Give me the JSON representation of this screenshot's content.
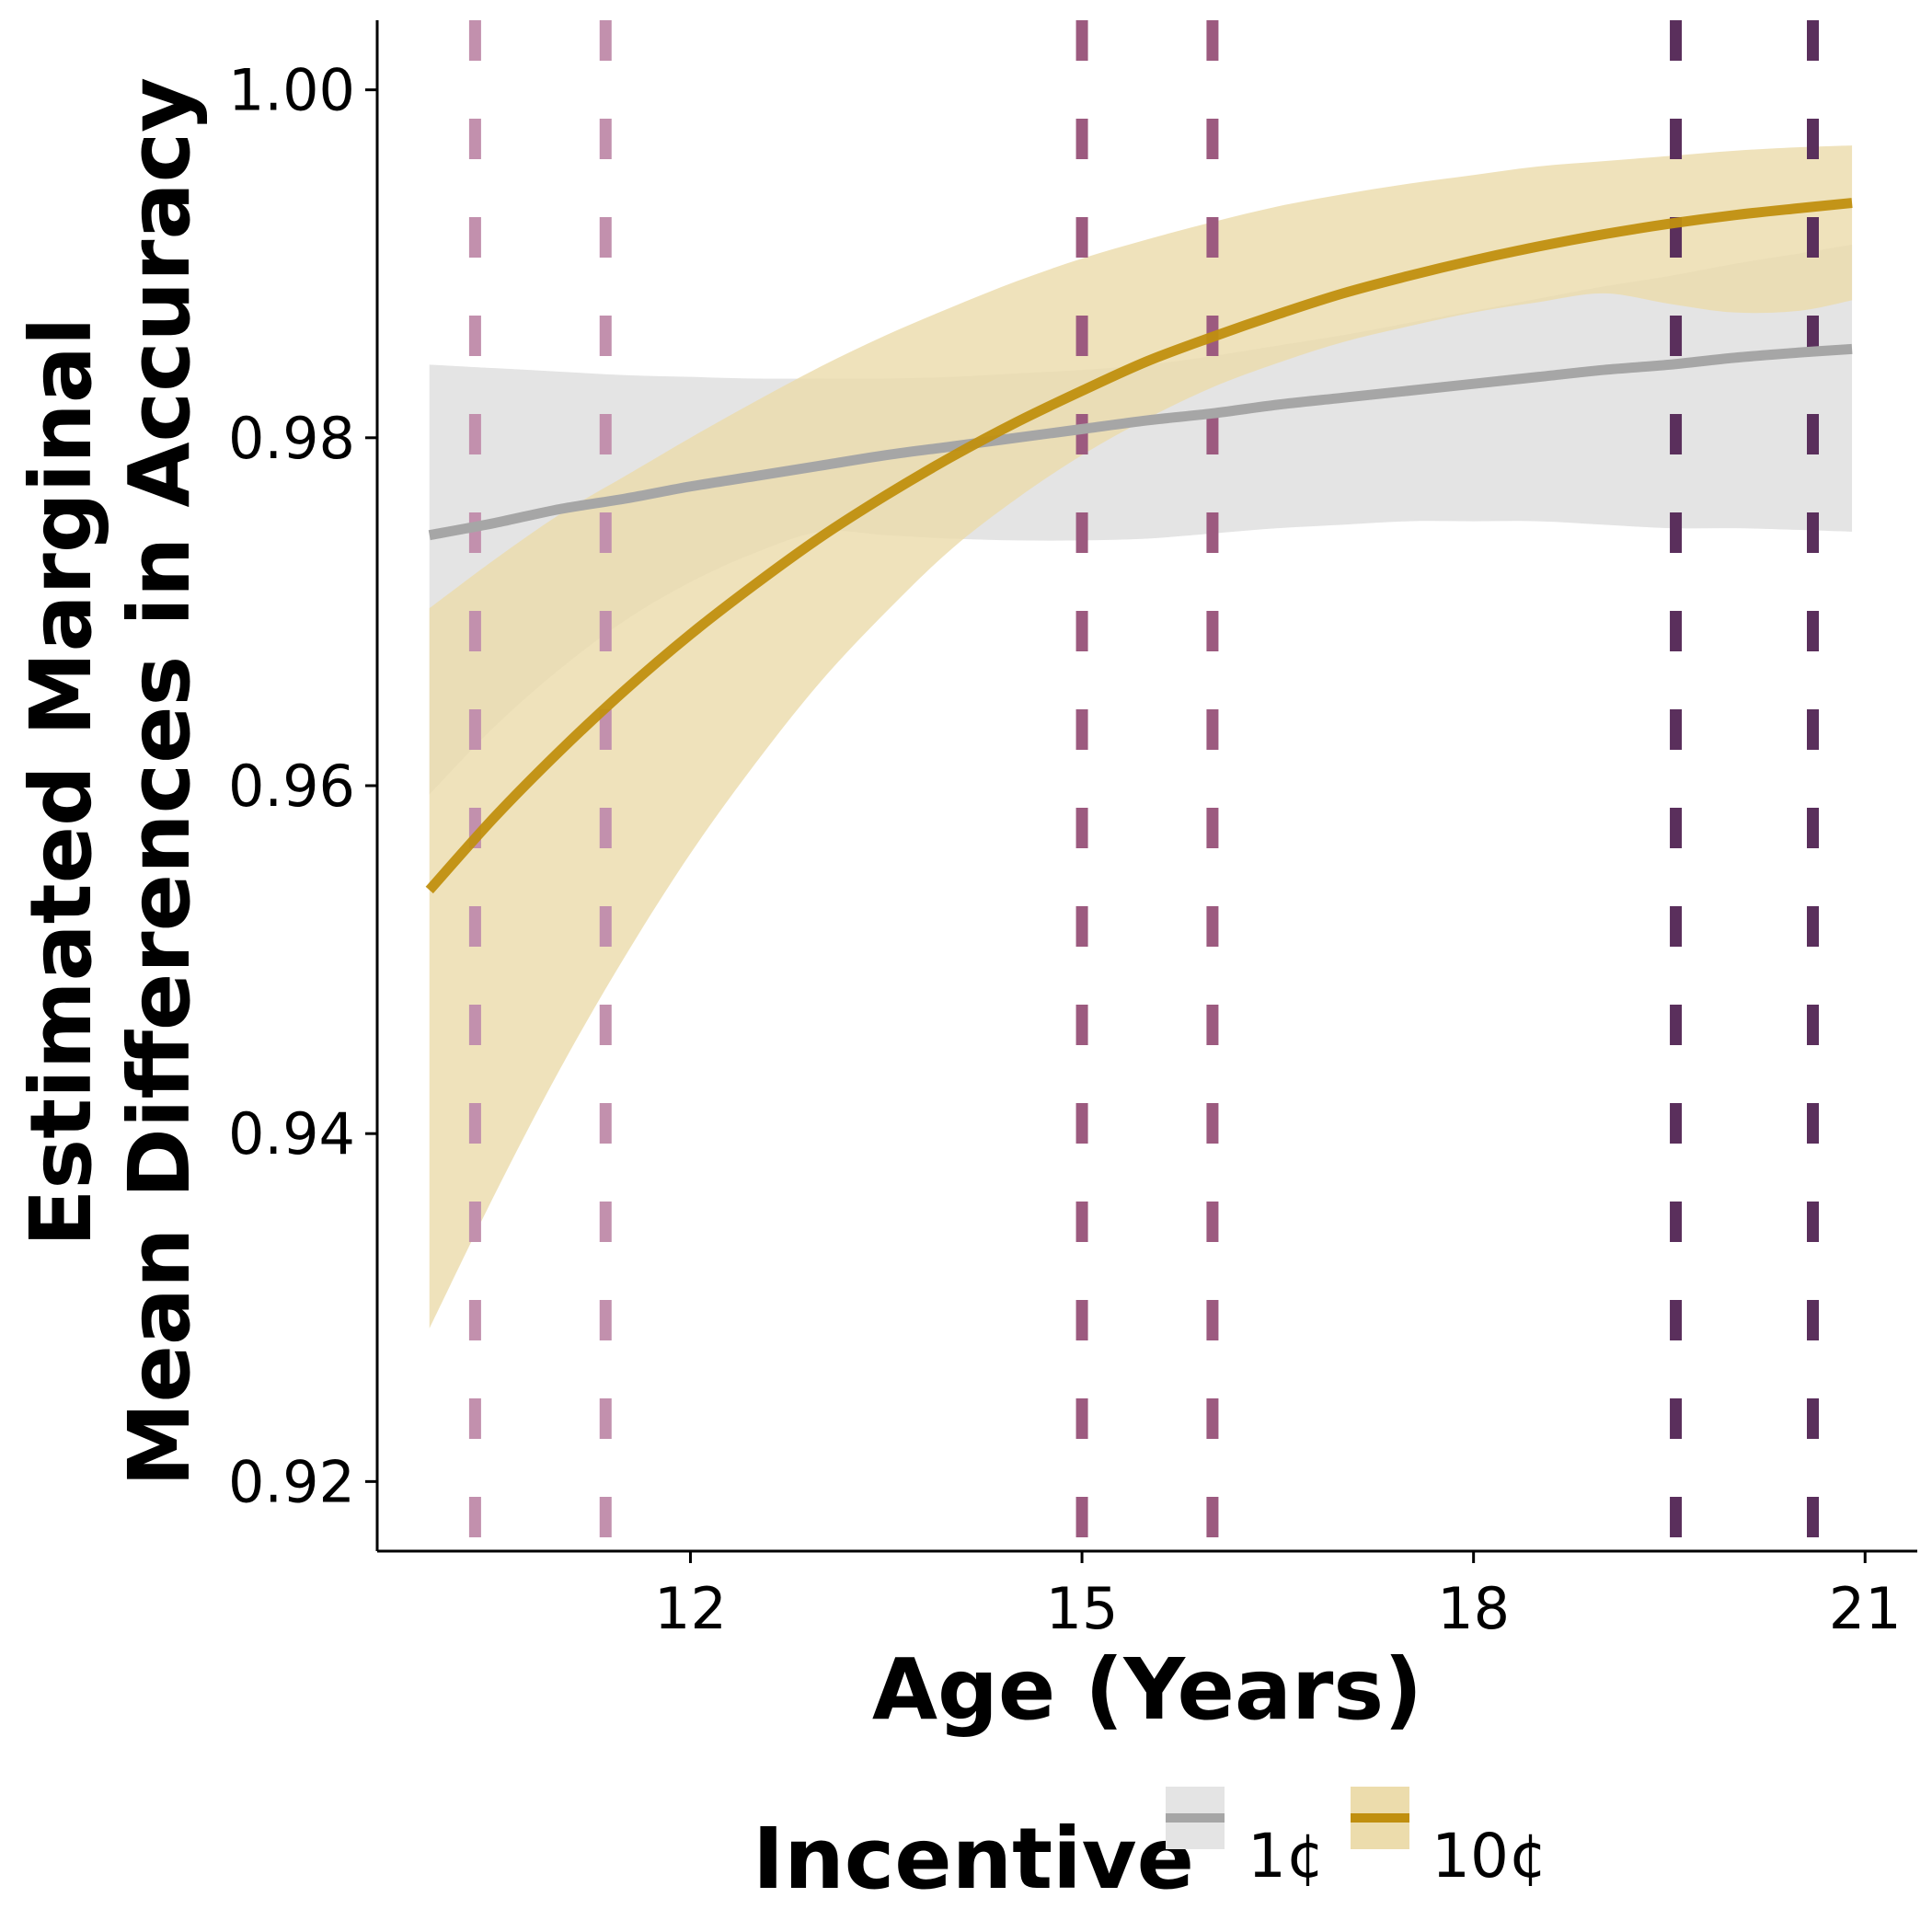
{
  "chart_data": {
    "type": "line",
    "xlabel": "Age (Years)",
    "ylabel": [
      "Estimated Marginal",
      "Mean Differences in Accuracy"
    ],
    "xlim": [
      9.6,
      21.4
    ],
    "ylim": [
      0.916,
      1.004
    ],
    "x_ticks": [
      12,
      15,
      18,
      21
    ],
    "x_tick_labels": [
      "12",
      "15",
      "18",
      "21"
    ],
    "y_ticks": [
      0.92,
      0.94,
      0.96,
      0.98,
      1.0
    ],
    "y_tick_labels": [
      "0.92",
      "0.94",
      "0.96",
      "0.98",
      "1.00"
    ],
    "grid": false,
    "legend": {
      "title": "Incentive",
      "position": "bottom",
      "entries": [
        "1¢",
        "10¢"
      ]
    },
    "x": [
      10,
      10.5,
      11,
      11.5,
      12,
      12.5,
      13,
      13.5,
      14,
      14.5,
      15,
      15.5,
      16,
      16.5,
      17,
      17.5,
      18,
      18.5,
      19,
      19.5,
      20,
      20.5,
      20.9
    ],
    "series": [
      {
        "name": "1¢",
        "color": "#a6a6a6",
        "ribbon_color": "#e4e4e4",
        "values": [
          0.9744,
          0.9751,
          0.9759,
          0.9765,
          0.9772,
          0.9778,
          0.9784,
          0.979,
          0.9795,
          0.98,
          0.9805,
          0.981,
          0.9814,
          0.9819,
          0.9823,
          0.9827,
          0.9831,
          0.9835,
          0.9839,
          0.9842,
          0.9846,
          0.9849,
          0.9851
        ],
        "lower": [
          0.9595,
          0.9634,
          0.9667,
          0.9695,
          0.9717,
          0.9734,
          0.9746,
          0.9744,
          0.9742,
          0.9741,
          0.9741,
          0.9742,
          0.9745,
          0.9748,
          0.975,
          0.9752,
          0.9752,
          0.9752,
          0.975,
          0.9748,
          0.9748,
          0.9747,
          0.9746
        ],
        "upper": [
          0.9842,
          0.984,
          0.9838,
          0.9836,
          0.9835,
          0.9834,
          0.9834,
          0.9834,
          0.9835,
          0.9837,
          0.9839,
          0.9842,
          0.9847,
          0.9853,
          0.9859,
          0.9866,
          0.9873,
          0.988,
          0.9887,
          0.9893,
          0.99,
          0.9906,
          0.9911
        ]
      },
      {
        "name": "10¢",
        "color": "#c08f0f",
        "ribbon_color": "#ecdcac",
        "values": [
          0.954,
          0.9582,
          0.962,
          0.9655,
          0.9687,
          0.9716,
          0.9743,
          0.9767,
          0.9789,
          0.9809,
          0.9827,
          0.9844,
          0.9858,
          0.9871,
          0.9883,
          0.9893,
          0.9902,
          0.991,
          0.9917,
          0.9923,
          0.9928,
          0.9932,
          0.9935
        ],
        "lower": [
          0.9288,
          0.9365,
          0.9437,
          0.9502,
          0.9561,
          0.9613,
          0.966,
          0.97,
          0.9736,
          0.9765,
          0.979,
          0.9811,
          0.9829,
          0.9843,
          0.9855,
          0.9864,
          0.9872,
          0.9878,
          0.9883,
          0.9877,
          0.9872,
          0.9873,
          0.9879
        ],
        "upper": [
          0.9702,
          0.973,
          0.9756,
          0.9778,
          0.98,
          0.9821,
          0.9841,
          0.9859,
          0.9875,
          0.989,
          0.9903,
          0.9914,
          0.9924,
          0.9933,
          0.994,
          0.9946,
          0.9951,
          0.9956,
          0.9959,
          0.9962,
          0.9965,
          0.9967,
          0.9968
        ]
      }
    ],
    "reference_lines": [
      {
        "x": 10.35,
        "color": "#c290ad",
        "style": "dashed"
      },
      {
        "x": 11.35,
        "color": "#c290ad",
        "style": "dashed"
      },
      {
        "x": 15,
        "color": "#9c5a7f",
        "style": "dashed"
      },
      {
        "x": 16,
        "color": "#9c5a7f",
        "style": "dashed"
      },
      {
        "x": 19.55,
        "color": "#5a2f5c",
        "style": "dashed"
      },
      {
        "x": 20.6,
        "color": "#5a2f5c",
        "style": "dashed"
      }
    ]
  }
}
